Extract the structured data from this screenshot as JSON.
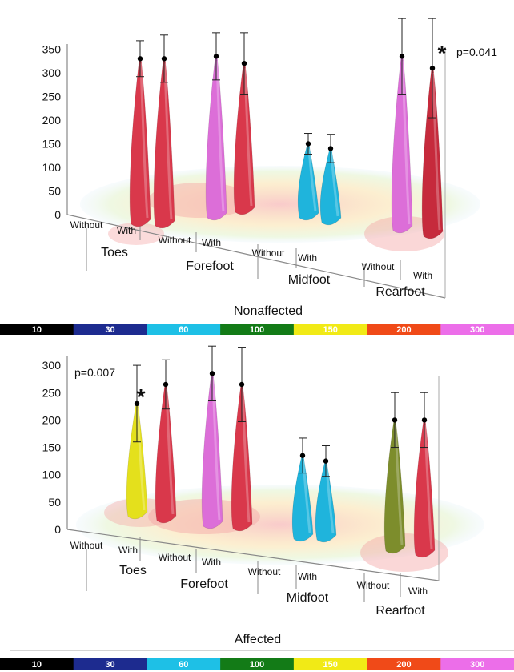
{
  "chart_data": [
    {
      "type": "bar",
      "title": "Nonaffected",
      "ylim": [
        0,
        350
      ],
      "yticks": [
        "0",
        "50",
        "100",
        "150",
        "200",
        "250",
        "300",
        "350"
      ],
      "categories": [
        "Without",
        "With",
        "Without",
        "With",
        "Without",
        "With",
        "Without",
        "With"
      ],
      "groups": [
        "Toes",
        "Forefoot",
        "Midfoot",
        "Rearfoot"
      ],
      "values": [
        330,
        330,
        335,
        320,
        150,
        140,
        335,
        310
      ],
      "errors": [
        38,
        50,
        50,
        65,
        22,
        30,
        80,
        105
      ],
      "colors": [
        "#d9384b",
        "#d9384b",
        "#dc6ed8",
        "#d9384b",
        "#1fb4dc",
        "#1fb4dc",
        "#dc6ed8",
        "#c62a3c"
      ],
      "annotation": {
        "label": "p=0.041",
        "star": "*"
      }
    },
    {
      "type": "bar",
      "title": "Affected",
      "ylim": [
        0,
        300
      ],
      "yticks": [
        "0",
        "50",
        "100",
        "150",
        "200",
        "250",
        "300"
      ],
      "categories": [
        "Without",
        "With",
        "Without",
        "With",
        "Without",
        "With",
        "Without",
        "With"
      ],
      "groups": [
        "Toes",
        "Forefoot",
        "Midfoot",
        "Rearfoot"
      ],
      "values": [
        230,
        265,
        285,
        265,
        135,
        125,
        200,
        200
      ],
      "errors": [
        70,
        45,
        50,
        68,
        32,
        28,
        50,
        50
      ],
      "colors": [
        "#e4e01c",
        "#d9384b",
        "#dc6ed8",
        "#d9384b",
        "#1fb4dc",
        "#1fb4dc",
        "#7d8d2c",
        "#d9384b"
      ],
      "annotation": {
        "label": "p=0.007",
        "star": "*"
      }
    }
  ],
  "colorbar": {
    "labels": [
      "10",
      "30",
      "60",
      "100",
      "150",
      "200",
      "300"
    ],
    "colors": [
      "#000000",
      "#1d2b8f",
      "#1ec0e6",
      "#137b17",
      "#f1ea16",
      "#f04a18",
      "#ec6ee9"
    ]
  }
}
